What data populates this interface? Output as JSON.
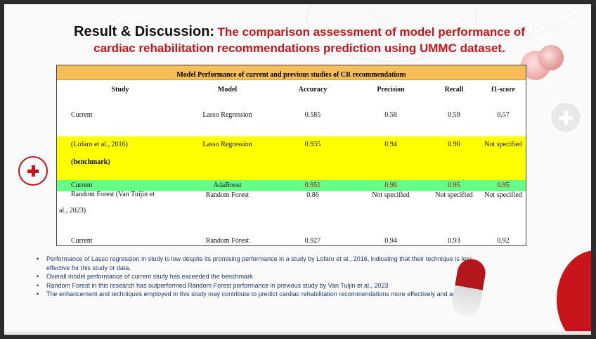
{
  "title": {
    "lead": "Result & Discussion:",
    "sub_line1": "The comparison assessment of model performance of",
    "sub_line2": "cardiac rehabilitation recommendations prediction using UMMC dataset."
  },
  "table": {
    "caption": "Model Performance of current and previous studies of CR recommendations",
    "headers": [
      "Study",
      "Model",
      "Accuracy",
      "Precision",
      "Recall",
      "f1-score"
    ],
    "rows": [
      {
        "study": "Current",
        "study2": "",
        "model": "Lasso Regression",
        "accuracy": "0.585",
        "precision": "0.58",
        "recall": "0.59",
        "f1": "0.57"
      },
      {
        "study": "(Lofaro et al., 2016)",
        "study2": "(benchmark)",
        "model": "Lasso Regression",
        "accuracy": "0.935",
        "precision": "0.94",
        "recall": "0.90",
        "f1": "Not specified"
      },
      {
        "study": "Current",
        "study2": "",
        "model": "AdaBoost",
        "accuracy": "0.951",
        "precision": "0.96",
        "recall": "0.95",
        "f1": "0.95"
      },
      {
        "study": "Random Forest (Van Tuijin et",
        "study2": "al., 2023)",
        "model": "Random Forest",
        "accuracy": "0.86",
        "precision": "Not specified",
        "recall": "Not specified",
        "f1": "Not specified"
      },
      {
        "study": "Current",
        "study2": "",
        "model": "Random Forest",
        "accuracy": "0.927",
        "precision": "0.94",
        "recall": "0.93",
        "f1": "0.92"
      }
    ]
  },
  "bullets": [
    "Performance of Lasso regression in study is low despite its promising performance in a study by Lofaro et al., 2016, indicating that their technique is less effective for this study  or data.",
    "Overall model performance of current study has exceeded the benchmark",
    "Random Forest in this research has outperformed Random Forest performance in previous study by Van Tuijin et al., 2023",
    "The enhancement and techniques employed in this study may contribute to predict cardiac rehabilitation recommendations more effectively and accurately."
  ],
  "colors": {
    "accent_red": "#c8141b",
    "caption_bg": "#f7bd59",
    "benchmark_row": "#ffff00",
    "best_row": "#66ff88",
    "bullet_text": "#1f3a7a"
  },
  "icons": [
    "medical-cross-icon",
    "medical-cross-icon",
    "pill-icon",
    "capsule-icon"
  ]
}
